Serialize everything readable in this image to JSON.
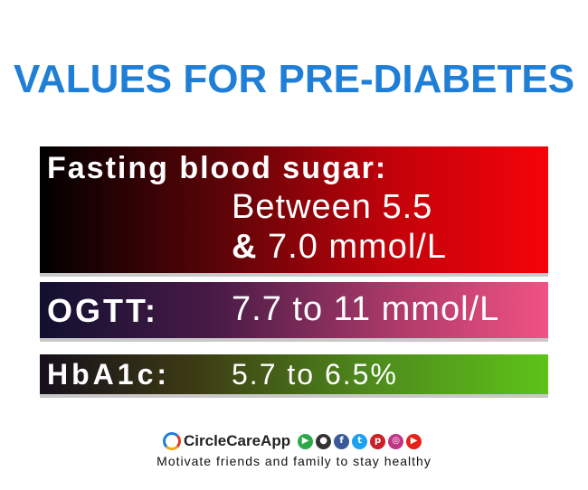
{
  "title": "VALUES FOR PRE-DIABETES",
  "rows": [
    {
      "label": "Fasting blood sugar:",
      "value_line1": "Between 5.5",
      "value_line2_amp": "&",
      "value_line2": " 7.0 mmol/L"
    },
    {
      "label": "OGTT:",
      "value": "7.7 to 11 mmol/L"
    },
    {
      "label": "HbA1c:",
      "value": "5.7 to 6.5%"
    }
  ],
  "colors": {
    "title": "#1f7fd6",
    "fasting_band_start": "#000000",
    "fasting_band_end": "#f40309",
    "ogtt_band_start": "#111030",
    "ogtt_band_end": "#f05283",
    "hba1c_band_start": "#160f1c",
    "hba1c_band_end": "#5dc318"
  },
  "footer": {
    "brand": "CircleCareApp",
    "social_icons": [
      {
        "icon": "play-store-icon",
        "glyph": "▶",
        "color": "#2ca84a"
      },
      {
        "icon": "apple-icon",
        "glyph": "●",
        "color": "#333333"
      },
      {
        "icon": "facebook-icon",
        "glyph": "f",
        "color": "#3b5998"
      },
      {
        "icon": "twitter-icon",
        "glyph": "t",
        "color": "#1da1f2"
      },
      {
        "icon": "pinterest-icon",
        "glyph": "p",
        "color": "#cb2027"
      },
      {
        "icon": "instagram-icon",
        "glyph": "◎",
        "color": "#c13584"
      },
      {
        "icon": "youtube-icon",
        "glyph": "▶",
        "color": "#e62117"
      }
    ],
    "tagline": "Motivate friends and family to stay healthy"
  }
}
